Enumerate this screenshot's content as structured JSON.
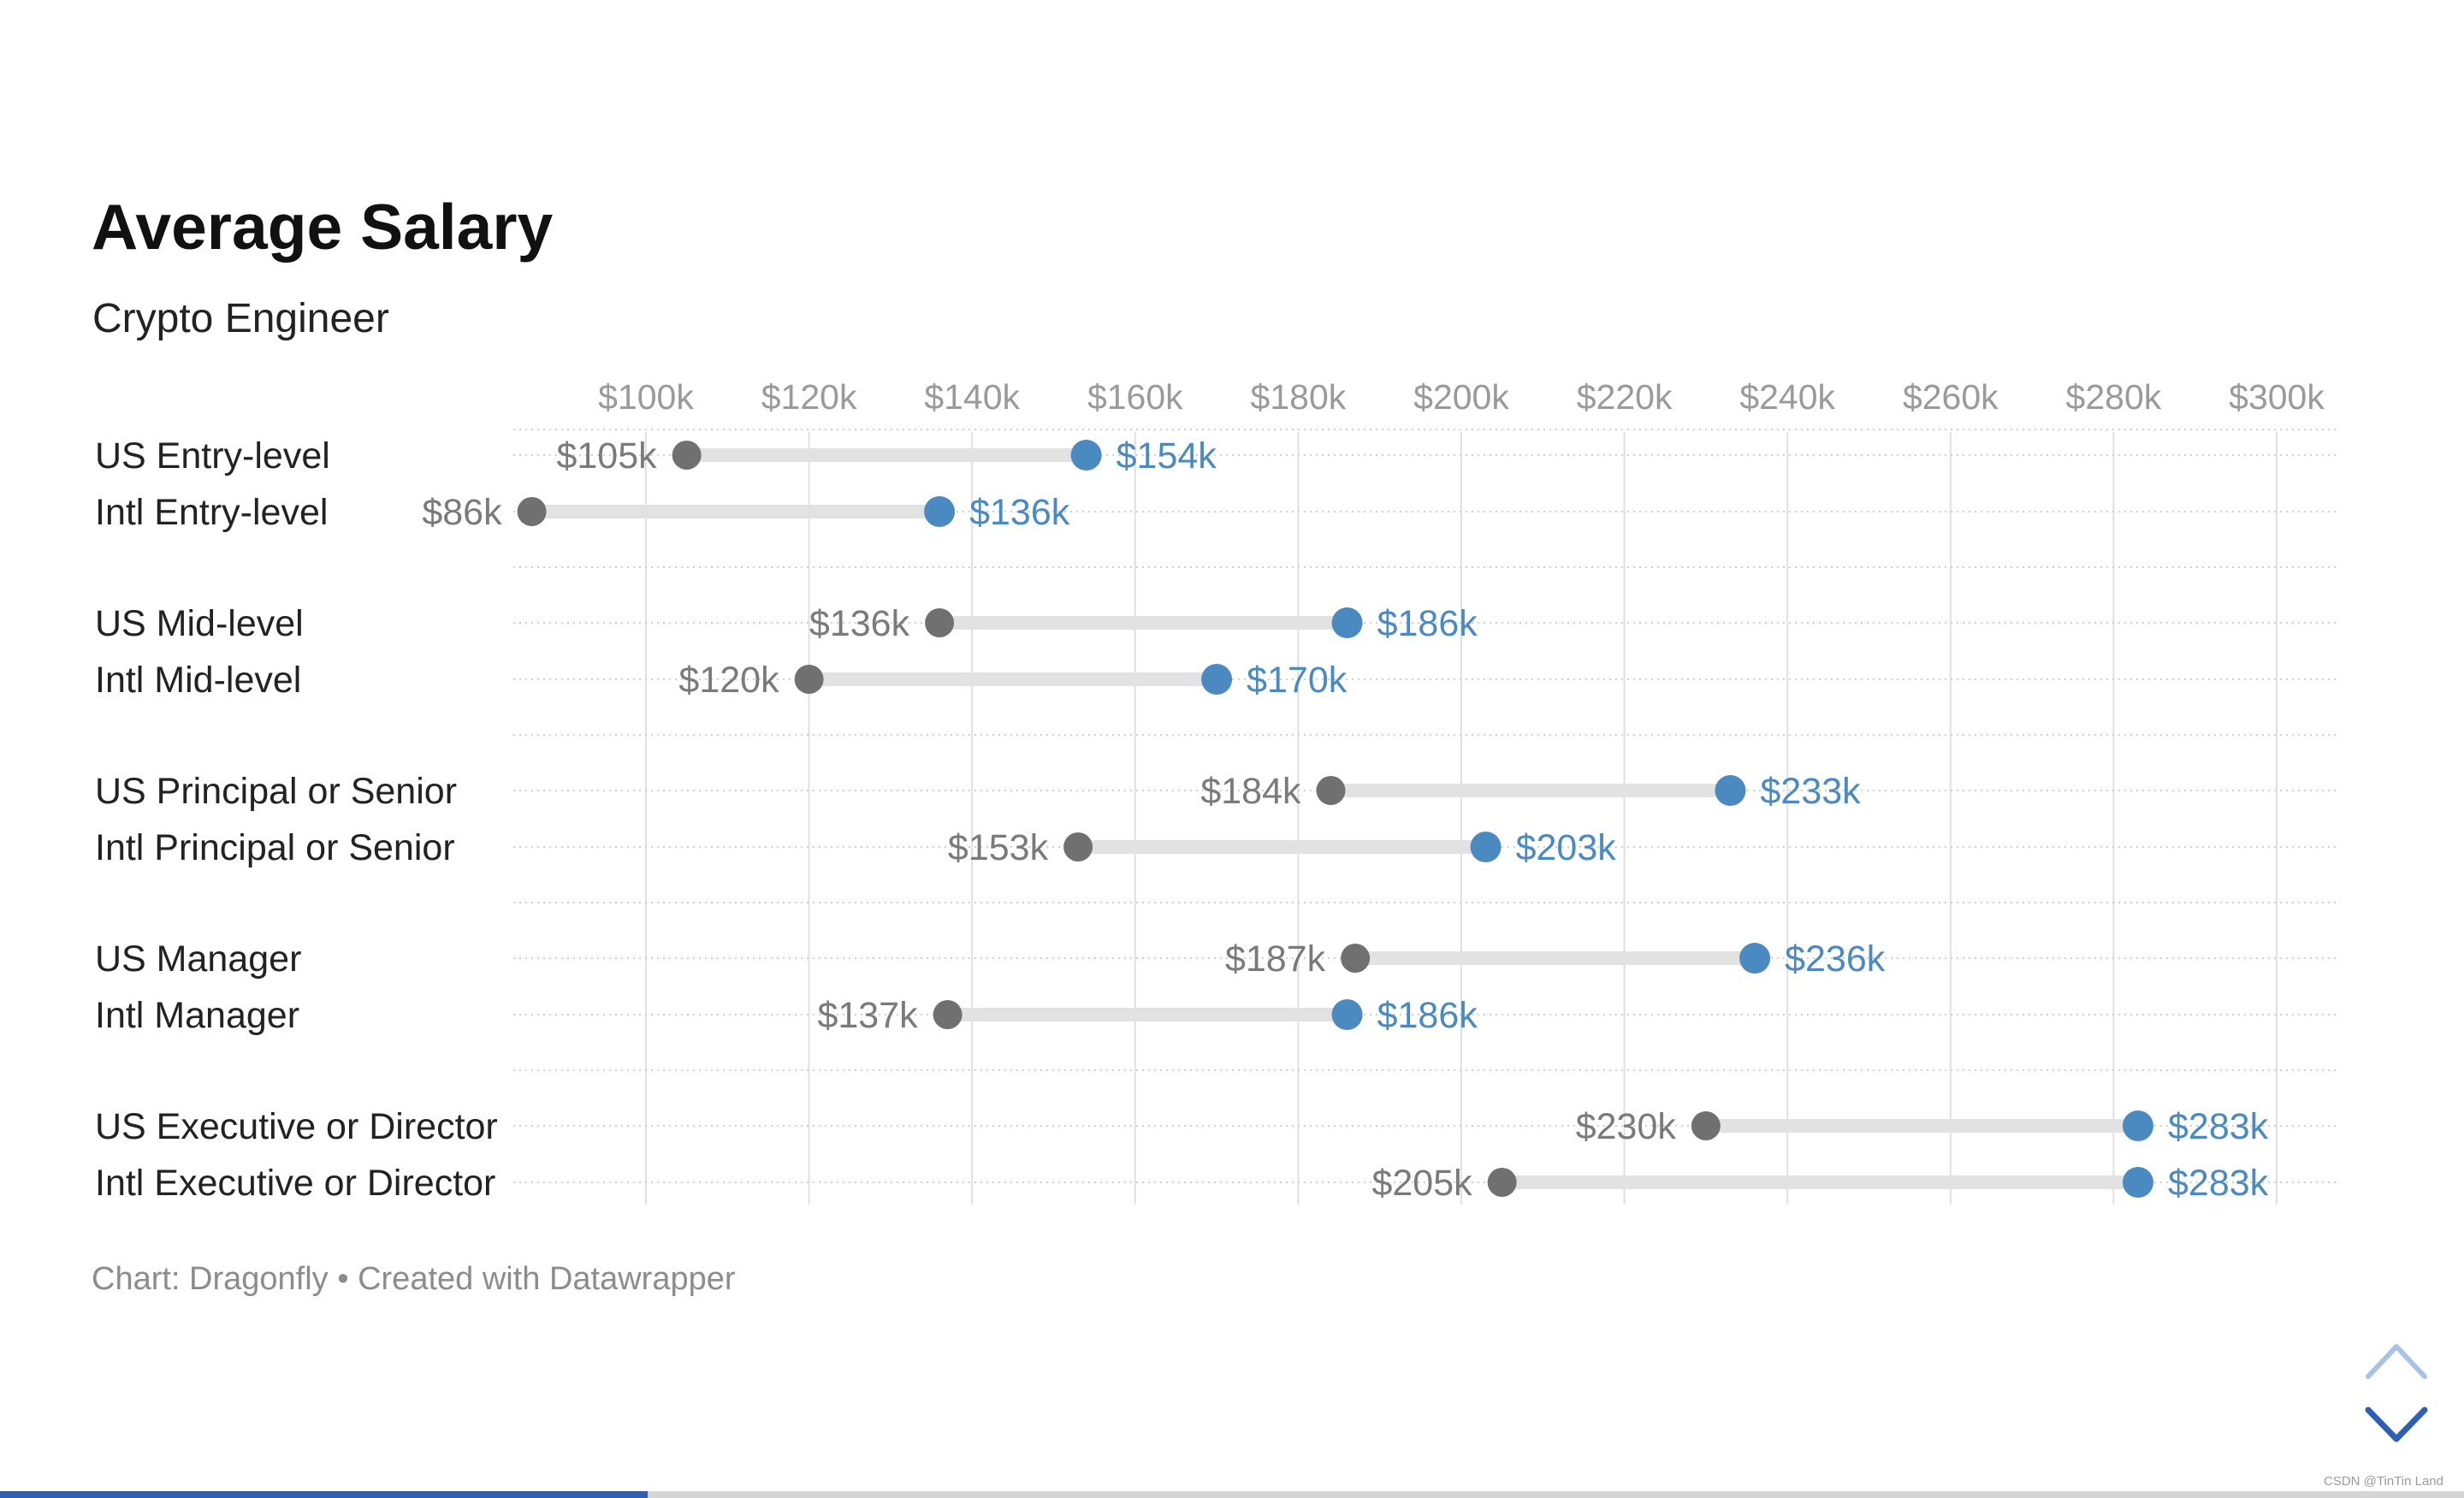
{
  "chart_data": {
    "type": "dot-range",
    "title": "Average Salary",
    "subtitle": "Crypto Engineer",
    "xlim": [
      86,
      300
    ],
    "x_ticks": [
      100,
      120,
      140,
      160,
      180,
      200,
      220,
      240,
      260,
      280,
      300
    ],
    "x_tick_labels": [
      "$100k",
      "$120k",
      "$140k",
      "$160k",
      "$180k",
      "$200k",
      "$220k",
      "$240k",
      "$260k",
      "$280k",
      "$300k"
    ],
    "grid": true,
    "groups": [
      {
        "rows": [
          {
            "label": "US Entry-level",
            "low": 105,
            "high": 154,
            "low_label": "$105k",
            "high_label": "$154k"
          },
          {
            "label": "Intl Entry-level",
            "low": 86,
            "high": 136,
            "low_label": "$86k",
            "high_label": "$136k"
          }
        ]
      },
      {
        "rows": [
          {
            "label": "US Mid-level",
            "low": 136,
            "high": 186,
            "low_label": "$136k",
            "high_label": "$186k"
          },
          {
            "label": "Intl Mid-level",
            "low": 120,
            "high": 170,
            "low_label": "$120k",
            "high_label": "$170k"
          }
        ]
      },
      {
        "rows": [
          {
            "label": "US Principal or Senior",
            "low": 184,
            "high": 233,
            "low_label": "$184k",
            "high_label": "$233k"
          },
          {
            "label": "Intl Principal or Senior",
            "low": 153,
            "high": 203,
            "low_label": "$153k",
            "high_label": "$203k"
          }
        ]
      },
      {
        "rows": [
          {
            "label": "US Manager",
            "low": 187,
            "high": 236,
            "low_label": "$187k",
            "high_label": "$236k"
          },
          {
            "label": "Intl Manager",
            "low": 137,
            "high": 186,
            "low_label": "$137k",
            "high_label": "$186k"
          }
        ]
      },
      {
        "rows": [
          {
            "label": "US Executive or Director",
            "low": 230,
            "high": 283,
            "low_label": "$230k",
            "high_label": "$283k"
          },
          {
            "label": "Intl Executive or Director",
            "low": 205,
            "high": 283,
            "low_label": "$205k",
            "high_label": "$283k"
          }
        ]
      }
    ],
    "colors": {
      "low_dot": "#707070",
      "high_dot": "#4a8ac0",
      "range_bar": "#e2e2e2",
      "grid": "#e0e0e0"
    },
    "footer": "Chart: Dragonfly • Created with Datawrapper"
  },
  "navigation": {
    "up_icon": "chevron-up-icon",
    "down_icon": "chevron-down-icon",
    "up_color": "#a9c2e6",
    "down_color": "#2f5fb3",
    "progress_fraction": 0.263
  },
  "watermark": "CSDN @TinTin Land"
}
